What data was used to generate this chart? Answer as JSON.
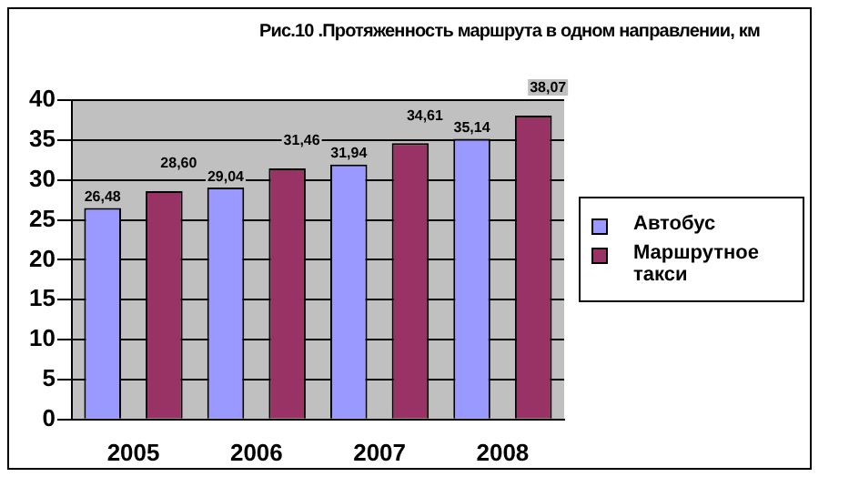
{
  "chart_data": {
    "type": "bar",
    "title": "Рис.10 .Протяженность маршрута в одном направлении, км",
    "categories": [
      "2005",
      "2006",
      "2007",
      "2008"
    ],
    "series": [
      {
        "name": "Автобус",
        "color": "#9999ff",
        "values": [
          26.48,
          29.04,
          31.94,
          35.14
        ],
        "value_labels": [
          "26,48",
          "29,04",
          "31,94",
          "35,14"
        ]
      },
      {
        "name": "Маршрутное такси",
        "color": "#993366",
        "values": [
          28.6,
          31.46,
          34.61,
          38.07
        ],
        "value_labels": [
          "28,60",
          "31,46",
          "34,61",
          "38,07"
        ]
      }
    ],
    "ylim": [
      0,
      40
    ],
    "yticks": [
      0,
      5,
      10,
      15,
      20,
      25,
      30,
      35,
      40
    ],
    "grid": "y",
    "legend": "right"
  }
}
